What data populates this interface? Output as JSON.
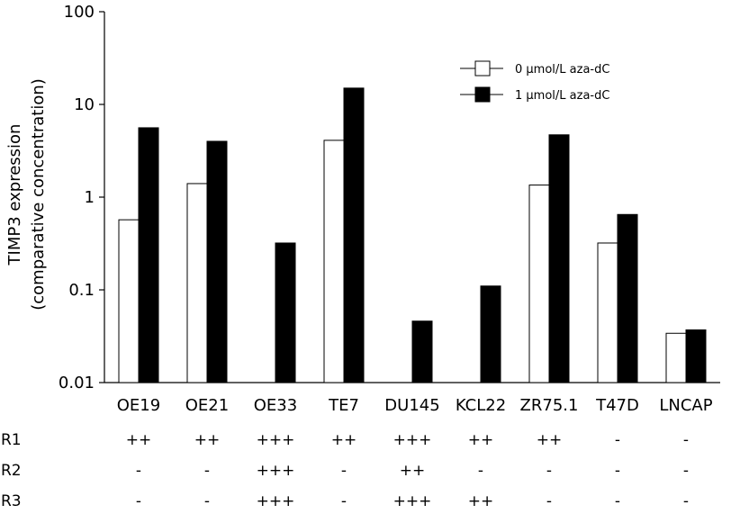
{
  "chart_data": {
    "type": "bar",
    "title": "",
    "ylabel_line1": "TIMP3 expression",
    "ylabel_line2": "(comparative concentration)",
    "xlabel": "",
    "yscale": "log",
    "ylim": [
      0.01,
      100
    ],
    "yticks": [
      "0.01",
      "0.1",
      "1",
      "10",
      "100"
    ],
    "categories": [
      "OE19",
      "OE21",
      "OE33",
      "TE7",
      "DU145",
      "KCL22",
      "ZR75.1",
      "T47D",
      "LNCAP"
    ],
    "series": [
      {
        "name": "0 μmol/L aza-dC",
        "color": "#ffffff",
        "values": [
          0.57,
          1.4,
          null,
          4.1,
          null,
          null,
          1.35,
          0.32,
          0.034
        ]
      },
      {
        "name": "1 μmol/L aza-dC",
        "color": "#000000",
        "values": [
          5.6,
          4.0,
          0.32,
          15.0,
          0.046,
          0.11,
          4.7,
          0.65,
          0.037
        ]
      }
    ],
    "legend_position": "top-right",
    "grid": false,
    "table": {
      "rows": [
        {
          "label": "R1",
          "cells": [
            "++",
            "++",
            "+++",
            "++",
            "+++",
            "++",
            "++",
            "-",
            "-"
          ]
        },
        {
          "label": "R2",
          "cells": [
            "-",
            "-",
            "+++",
            "-",
            "++",
            "-",
            "-",
            "-",
            "-"
          ]
        },
        {
          "label": "R3",
          "cells": [
            "-",
            "-",
            "+++",
            "-",
            "+++",
            "++",
            "-",
            "-",
            "-"
          ]
        }
      ]
    }
  }
}
